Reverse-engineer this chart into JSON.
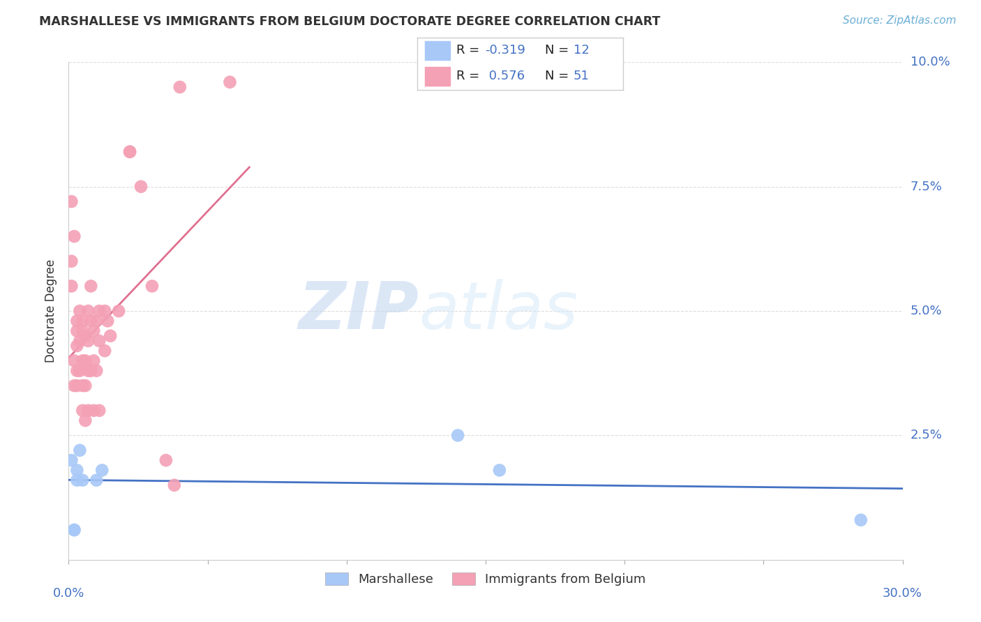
{
  "title": "MARSHALLESE VS IMMIGRANTS FROM BELGIUM DOCTORATE DEGREE CORRELATION CHART",
  "source": "Source: ZipAtlas.com",
  "ylabel": "Doctorate Degree",
  "watermark_zip": "ZIP",
  "watermark_atlas": "atlas",
  "legend_blue_r": "-0.319",
  "legend_blue_n": "12",
  "legend_pink_r": "0.576",
  "legend_pink_n": "51",
  "legend_blue_label": "Marshallese",
  "legend_pink_label": "Immigrants from Belgium",
  "xlim": [
    0.0,
    0.3
  ],
  "ylim": [
    0.0,
    0.1
  ],
  "yticks": [
    0.0,
    0.025,
    0.05,
    0.075,
    0.1
  ],
  "ytick_labels": [
    "",
    "2.5%",
    "5.0%",
    "7.5%",
    "10.0%"
  ],
  "blue_scatter_color": "#A8C8F8",
  "pink_scatter_color": "#F4A0B5",
  "blue_line_color": "#4472C4",
  "pink_line_color": "#E07090",
  "text_color": "#333333",
  "source_color": "#6BAED6",
  "grid_color": "#DDDDDD",
  "background_color": "#FFFFFF",
  "marshallese_x": [
    0.001,
    0.002,
    0.002,
    0.003,
    0.003,
    0.004,
    0.005,
    0.01,
    0.012,
    0.155,
    0.285,
    0.14
  ],
  "marshallese_y": [
    0.02,
    0.006,
    0.006,
    0.018,
    0.016,
    0.022,
    0.016,
    0.016,
    0.018,
    0.018,
    0.008,
    0.025
  ],
  "belgium_x": [
    0.001,
    0.001,
    0.001,
    0.002,
    0.002,
    0.002,
    0.003,
    0.003,
    0.003,
    0.003,
    0.003,
    0.004,
    0.004,
    0.004,
    0.005,
    0.005,
    0.005,
    0.005,
    0.005,
    0.006,
    0.006,
    0.006,
    0.006,
    0.007,
    0.007,
    0.007,
    0.007,
    0.008,
    0.008,
    0.008,
    0.009,
    0.009,
    0.009,
    0.01,
    0.01,
    0.011,
    0.011,
    0.011,
    0.013,
    0.013,
    0.014,
    0.015,
    0.018,
    0.022,
    0.022,
    0.026,
    0.03,
    0.035,
    0.038,
    0.04,
    0.058
  ],
  "belgium_y": [
    0.072,
    0.06,
    0.055,
    0.065,
    0.04,
    0.035,
    0.048,
    0.046,
    0.043,
    0.038,
    0.035,
    0.05,
    0.044,
    0.038,
    0.048,
    0.046,
    0.04,
    0.035,
    0.03,
    0.045,
    0.04,
    0.035,
    0.028,
    0.05,
    0.044,
    0.038,
    0.03,
    0.055,
    0.048,
    0.038,
    0.046,
    0.04,
    0.03,
    0.048,
    0.038,
    0.05,
    0.044,
    0.03,
    0.05,
    0.042,
    0.048,
    0.045,
    0.05,
    0.082,
    0.082,
    0.075,
    0.055,
    0.02,
    0.015,
    0.095,
    0.096
  ]
}
